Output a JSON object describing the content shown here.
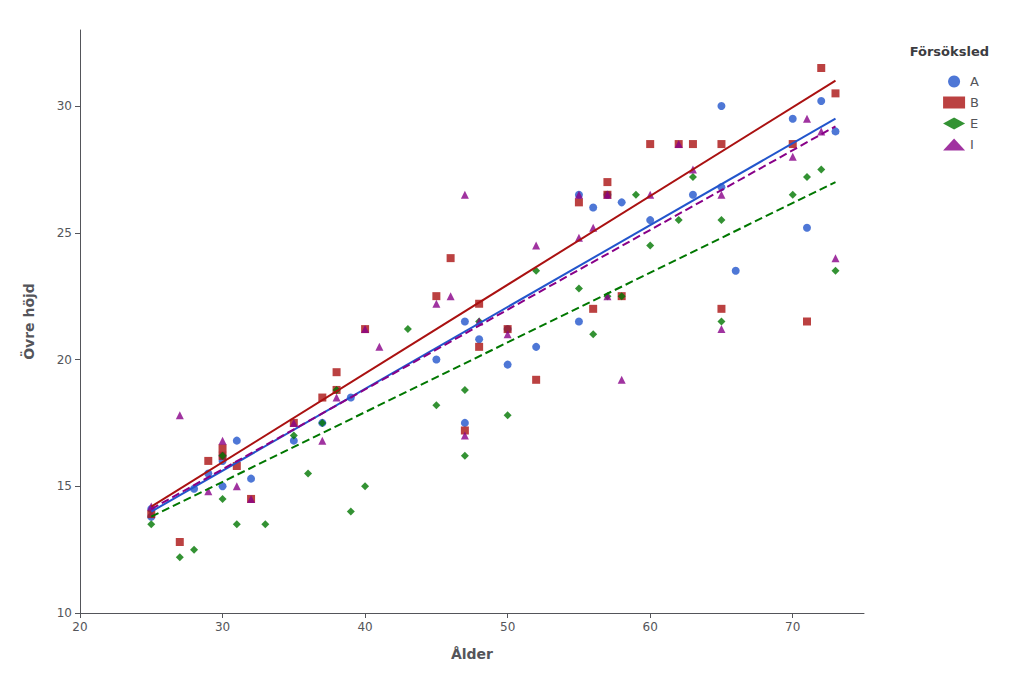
{
  "chart_data": {
    "type": "scatter",
    "xlabel": "Ålder",
    "ylabel": "Övre höjd",
    "xlim": [
      20,
      75
    ],
    "ylim": [
      10,
      33
    ],
    "xticks": [
      20,
      30,
      40,
      50,
      60,
      70
    ],
    "yticks": [
      10,
      15,
      20,
      25,
      30
    ],
    "grid": false,
    "legend": "upper right",
    "legend_title": "Försöksled",
    "series": [
      {
        "name": "A",
        "color": "#2255cc",
        "marker": "circle",
        "line_style": "solid",
        "fit_x": [
          25,
          73
        ],
        "fit_values": [
          14.0,
          29.5
        ],
        "x": [
          25,
          25,
          28,
          29,
          30,
          30,
          30,
          31,
          32,
          35,
          37,
          39,
          45,
          47,
          47,
          48,
          50,
          50,
          52,
          55,
          55,
          56,
          57,
          58,
          60,
          63,
          65,
          65,
          66,
          70,
          71,
          72,
          73
        ],
        "values": [
          13.8,
          14.1,
          14.9,
          15.5,
          16.2,
          16.0,
          15.0,
          16.8,
          15.3,
          16.8,
          17.5,
          18.5,
          20.0,
          21.5,
          17.5,
          20.8,
          19.8,
          21.2,
          20.5,
          26.5,
          21.5,
          26.0,
          26.5,
          26.2,
          25.5,
          26.5,
          26.8,
          30.0,
          23.5,
          29.5,
          25.2,
          30.2,
          29.0
        ]
      },
      {
        "name": "B",
        "color": "#aa1111",
        "marker": "square",
        "line_style": "solid",
        "fit_x": [
          25,
          73
        ],
        "fit_values": [
          14.2,
          31.0
        ],
        "x": [
          25,
          27,
          29,
          30,
          30,
          31,
          32,
          35,
          37,
          38,
          38,
          40,
          45,
          46,
          47,
          48,
          48,
          50,
          52,
          55,
          56,
          57,
          57,
          58,
          60,
          62,
          63,
          65,
          65,
          70,
          71,
          72,
          73
        ],
        "values": [
          13.9,
          12.8,
          16.0,
          16.5,
          16.2,
          15.8,
          14.5,
          17.5,
          18.5,
          18.8,
          19.5,
          21.2,
          22.5,
          24.0,
          17.2,
          20.5,
          22.2,
          21.2,
          19.2,
          26.2,
          22.0,
          27.0,
          26.5,
          22.5,
          28.5,
          28.5,
          28.5,
          28.5,
          22.0,
          28.5,
          21.5,
          31.5,
          30.5
        ]
      },
      {
        "name": "E",
        "color": "#007700",
        "marker": "diamond",
        "line_style": "dashed",
        "fit_x": [
          25,
          73
        ],
        "fit_values": [
          13.8,
          27.0
        ],
        "x": [
          25,
          27,
          28,
          30,
          30,
          31,
          33,
          35,
          36,
          37,
          38,
          39,
          40,
          43,
          45,
          47,
          47,
          48,
          50,
          52,
          55,
          56,
          57,
          58,
          59,
          60,
          62,
          63,
          65,
          65,
          70,
          71,
          72,
          73
        ],
        "values": [
          13.5,
          12.2,
          12.5,
          16.2,
          14.5,
          13.5,
          13.5,
          17.0,
          15.5,
          17.5,
          18.8,
          14.0,
          15.0,
          21.2,
          18.2,
          18.8,
          16.2,
          21.5,
          17.8,
          23.5,
          22.8,
          21.0,
          22.5,
          22.5,
          26.5,
          24.5,
          25.5,
          27.2,
          25.5,
          21.5,
          26.5,
          27.2,
          27.5,
          23.5
        ]
      },
      {
        "name": "I",
        "color": "#880088",
        "marker": "triangle",
        "line_style": "dashed",
        "fit_x": [
          25,
          73
        ],
        "fit_values": [
          14.1,
          29.2
        ],
        "x": [
          25,
          27,
          29,
          30,
          31,
          32,
          35,
          37,
          38,
          40,
          41,
          45,
          46,
          47,
          47,
          48,
          50,
          52,
          55,
          55,
          56,
          57,
          57,
          58,
          60,
          62,
          63,
          65,
          65,
          70,
          71,
          72,
          73
        ],
        "values": [
          14.2,
          17.8,
          14.8,
          16.8,
          15.0,
          14.5,
          17.5,
          16.8,
          18.5,
          21.2,
          20.5,
          22.2,
          22.5,
          26.5,
          17.0,
          21.5,
          21.0,
          24.5,
          24.8,
          26.5,
          25.2,
          22.5,
          26.5,
          19.2,
          26.5,
          28.5,
          27.5,
          26.5,
          21.2,
          28.0,
          29.5,
          29.0,
          24.0
        ]
      }
    ]
  }
}
